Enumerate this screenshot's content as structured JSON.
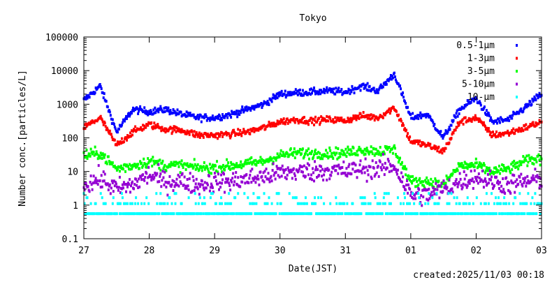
{
  "chart_data": {
    "type": "scatter",
    "title": "Tokyo",
    "xlabel": "Date(JST)",
    "ylabel": "Number conc.[particles/L]",
    "yscale": "log",
    "ylim": [
      0.1,
      100000
    ],
    "yticks": [
      "100000",
      "10000",
      "1000",
      "100",
      "10",
      "1",
      "0.1"
    ],
    "ytick_values": [
      100000,
      10000,
      1000,
      100,
      10,
      1,
      0.1
    ],
    "xticks": [
      "27",
      "28",
      "29",
      "30",
      "31",
      "01",
      "02",
      "03"
    ],
    "x_unit": "hours since 27 00:00",
    "xlim": [
      0,
      168
    ],
    "sample_hours": [
      0,
      6,
      12,
      18,
      24,
      30,
      36,
      42,
      48,
      54,
      60,
      66,
      72,
      78,
      84,
      90,
      96,
      102,
      108,
      114,
      120,
      126,
      132,
      138,
      144,
      150,
      156,
      162,
      168
    ],
    "legend_position": "top-right",
    "series": [
      {
        "name": "0.5-1μm",
        "color": "#0000ff",
        "values": [
          1300,
          3500,
          150,
          700,
          600,
          700,
          500,
          400,
          400,
          500,
          700,
          1000,
          2000,
          2200,
          2300,
          2500,
          2300,
          3500,
          2500,
          8000,
          400,
          500,
          100,
          700,
          1500,
          300,
          350,
          800,
          2000
        ]
      },
      {
        "name": "1-3μm",
        "color": "#ff0000",
        "values": [
          200,
          400,
          60,
          150,
          250,
          180,
          170,
          120,
          120,
          130,
          150,
          200,
          300,
          350,
          320,
          350,
          330,
          450,
          400,
          800,
          80,
          60,
          40,
          300,
          400,
          120,
          140,
          200,
          300
        ]
      },
      {
        "name": "3-5μm",
        "color": "#00ff00",
        "values": [
          30,
          35,
          12,
          15,
          20,
          15,
          15,
          13,
          13,
          15,
          17,
          20,
          30,
          35,
          35,
          35,
          35,
          45,
          40,
          45,
          5,
          5,
          4,
          15,
          15,
          10,
          12,
          20,
          25
        ]
      },
      {
        "name": "5-10μm",
        "color": "#9400d3",
        "values": [
          4,
          6,
          3,
          4,
          8,
          5,
          5,
          4,
          5,
          5,
          6,
          7,
          9,
          10,
          10,
          11,
          10,
          12,
          12,
          15,
          2,
          2,
          3,
          5,
          7,
          5,
          4,
          5,
          6
        ]
      },
      {
        "name": "10-μm",
        "color": "#00ffff",
        "values": [
          0.8,
          0.8,
          0.7,
          0.8,
          0.9,
          0.8,
          0.7,
          0.7,
          0.7,
          0.8,
          0.8,
          0.8,
          0.8,
          0.9,
          0.9,
          0.9,
          0.8,
          0.9,
          0.9,
          1.0,
          0.6,
          0.6,
          0.6,
          0.7,
          0.8,
          0.7,
          0.7,
          0.7,
          0.8
        ]
      }
    ]
  },
  "footer": {
    "created": "created:2025/11/03 00:18"
  }
}
